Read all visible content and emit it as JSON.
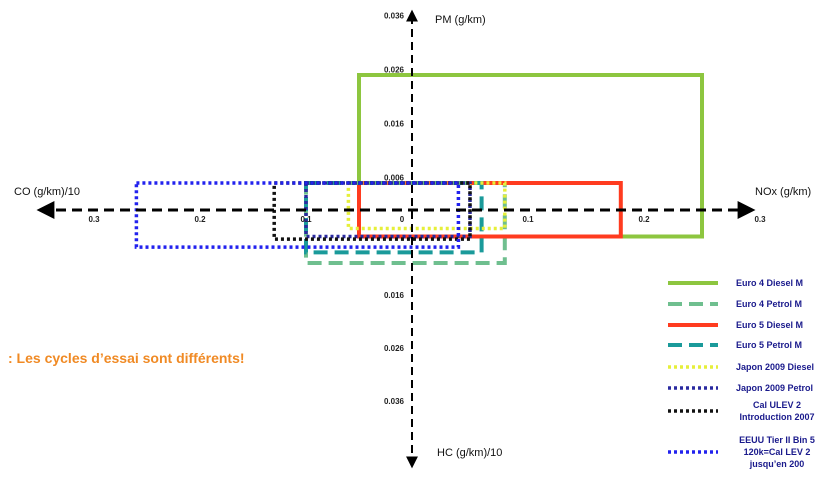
{
  "chart_data": {
    "type": "rectangles",
    "note": ": Les cycles d’essai sont différents!",
    "axes": {
      "x_right_label": "NOx (g/km)",
      "x_left_label": "CO (g/km)/10",
      "y_top_label": "PM (g/km)",
      "y_bottom_label": "HC (g/km)/10",
      "x_ticks_left": [
        "0.3",
        "0.2",
        "0.1"
      ],
      "x_ticks_right": [
        "0",
        "0.1",
        "0.2",
        "0.3"
      ],
      "y_ticks_top": [
        "0.036",
        "0.026",
        "0.016",
        "0.006"
      ],
      "y_ticks_bottom": [
        "0.016",
        "0.026",
        "0.036"
      ],
      "xlim": [
        -0.3,
        0.3
      ],
      "ylim": [
        -0.036,
        0.036
      ]
    },
    "series": [
      {
        "name": "Euro 4 Diesel M",
        "color": "#8dc63f",
        "dash": "solid",
        "nox": 0.25,
        "co": 0.05,
        "pm": 0.025,
        "hc": 0.005
      },
      {
        "name": "Euro 4 Petrol M",
        "color": "#6fbf8f",
        "dash": "long",
        "nox": 0.08,
        "co": 0.1,
        "pm": 0.005,
        "hc": 0.01
      },
      {
        "name": "Euro 5 Diesel M",
        "color": "#ff3b1f",
        "dash": "solid",
        "nox": 0.18,
        "co": 0.05,
        "pm": 0.005,
        "hc": 0.005
      },
      {
        "name": "Euro 5 Petrol M",
        "color": "#1a9a9a",
        "dash": "long",
        "nox": 0.06,
        "co": 0.1,
        "pm": 0.005,
        "hc": 0.008
      },
      {
        "name": "Japon 2009 Diesel",
        "color": "#e6ef3a",
        "dash": "dot",
        "nox": 0.08,
        "co": 0.06,
        "pm": 0.005,
        "hc": 0.0035
      },
      {
        "name": "Japon 2009 Petrol",
        "color": "#2a2aa0",
        "dash": "dot",
        "nox": 0.05,
        "co": 0.1,
        "pm": 0.005,
        "hc": 0.005
      },
      {
        "name": "Cal ULEV Introduction 2007",
        "color": "#111111",
        "dash": "dot",
        "nox": 0.05,
        "co": 0.13,
        "pm": 0.005,
        "hc": 0.0055
      },
      {
        "name": "EEUU Tier II Bin 120k=Cal LEV jusqu’en 200",
        "color": "#2222ee",
        "dash": "dot",
        "nox": 0.04,
        "co": 0.26,
        "pm": 0.005,
        "hc": 0.007
      }
    ],
    "legend": [
      {
        "line1": "Euro 4 Diesel M",
        "line2": ""
      },
      {
        "line1": "Euro 4 Petrol M",
        "line2": ""
      },
      {
        "line1": "Euro 5 Diesel M",
        "line2": ""
      },
      {
        "line1": "Euro 5 Petrol M",
        "line2": ""
      },
      {
        "line1": "Japon 2009 Diesel",
        "line2": ""
      },
      {
        "line1": "Japon 2009 Petrol",
        "line2": ""
      },
      {
        "line1": "Cal ULEV 2",
        "line2": "Introduction 2007"
      },
      {
        "line1": "EEUU Tier II Bin 5",
        "line2": "120k=Cal LEV 2",
        "line3": "jusqu’en 200"
      }
    ],
    "legend_placement": "right"
  }
}
